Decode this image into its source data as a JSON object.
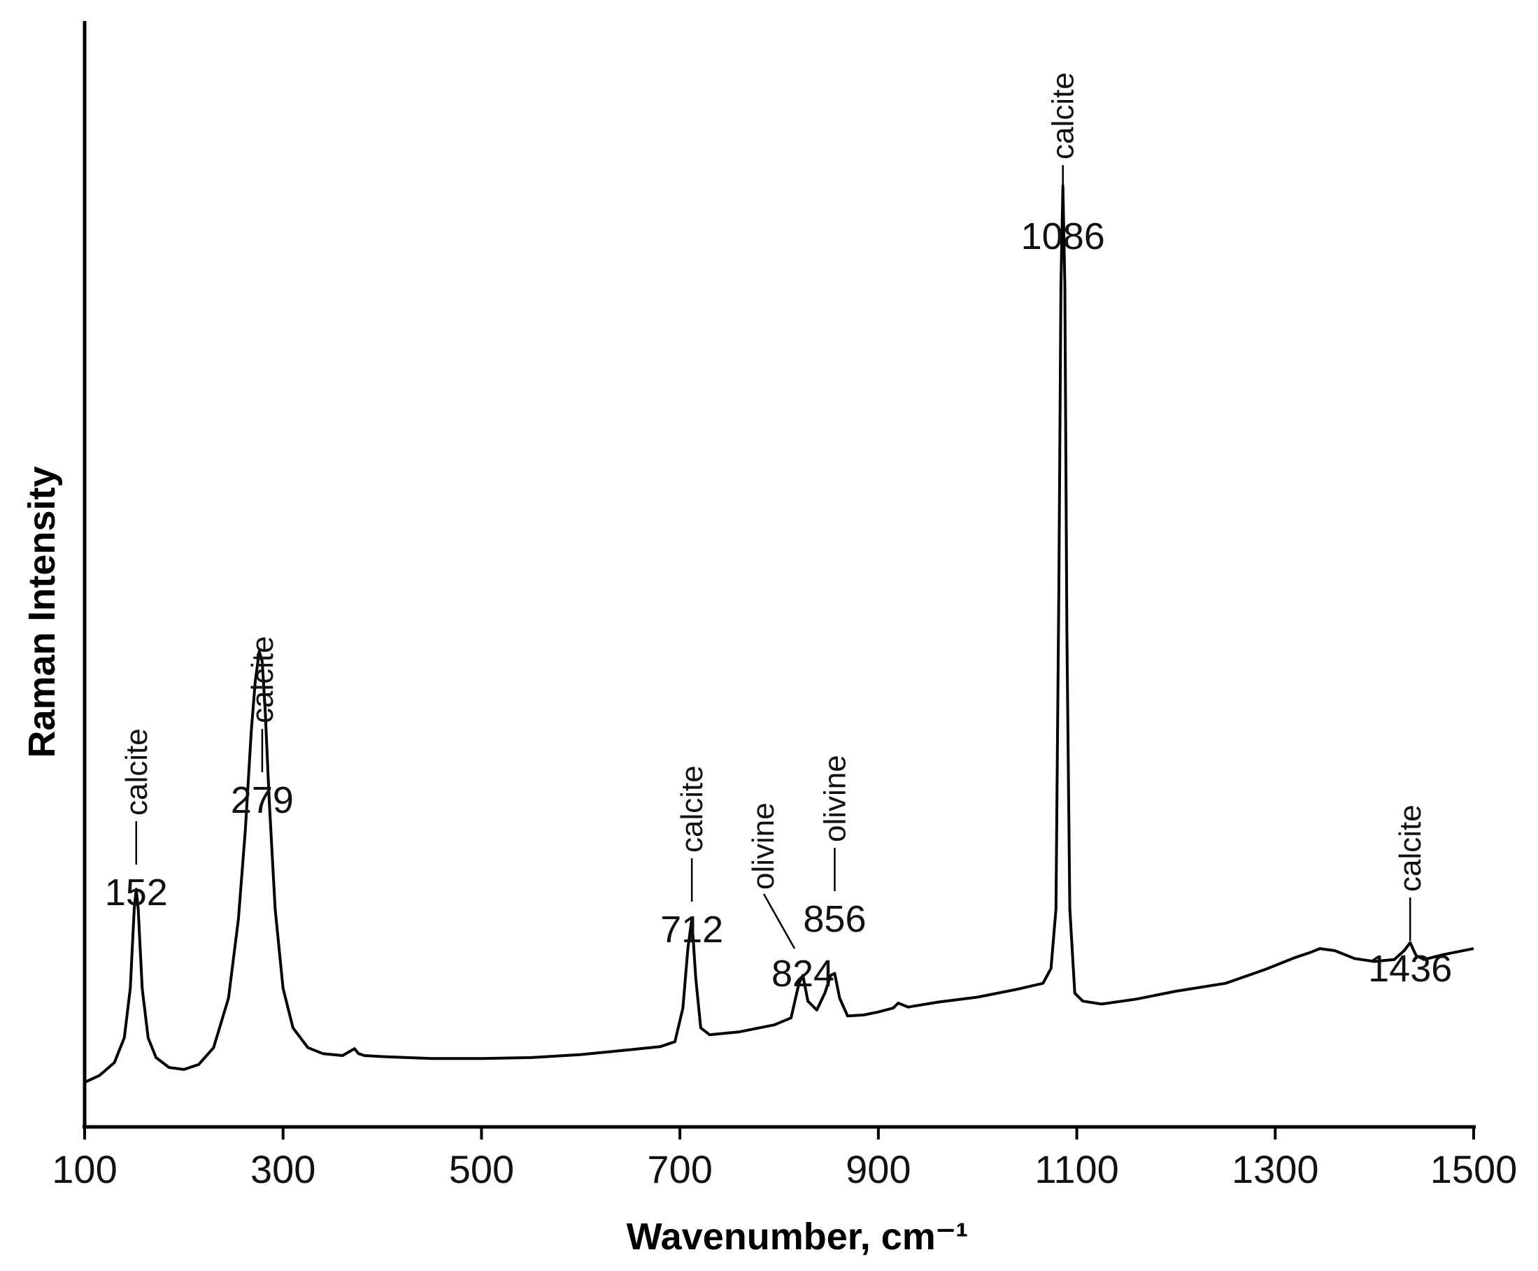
{
  "chart_data": {
    "type": "line",
    "xlabel": "Wavenumber, cm⁻¹",
    "ylabel": "Raman Intensity",
    "xlim": [
      100,
      1500
    ],
    "ylim": [
      0,
      100
    ],
    "x_ticks": [
      100,
      300,
      500,
      700,
      900,
      1100,
      1300,
      1500
    ],
    "y_ticks": [],
    "grid": false,
    "line_color": "#000000",
    "series": [
      {
        "x": [
          100,
          115,
          130,
          140,
          146,
          150,
          152,
          154,
          158,
          164,
          172,
          185,
          200,
          215,
          230,
          245,
          255,
          262,
          268,
          272,
          276,
          279,
          282,
          286,
          292,
          300,
          310,
          325,
          340,
          360,
          372,
          376,
          382,
          400,
          450,
          500,
          550,
          600,
          650,
          680,
          695,
          703,
          708,
          712,
          716,
          721,
          730,
          760,
          795,
          812,
          820,
          824,
          829,
          838,
          846,
          852,
          856,
          861,
          869,
          885,
          900,
          915,
          920,
          930,
          960,
          1000,
          1040,
          1066,
          1074,
          1079,
          1082,
          1084,
          1086,
          1088,
          1090,
          1093,
          1098,
          1106,
          1125,
          1160,
          1200,
          1250,
          1290,
          1320,
          1335,
          1345,
          1360,
          1380,
          1400,
          1420,
          1430,
          1436,
          1442,
          1450,
          1470,
          1500
        ],
        "y": [
          4.5,
          5.2,
          6.5,
          9,
          14,
          22,
          24,
          22,
          14,
          9,
          7,
          6,
          5.8,
          6.3,
          8,
          13,
          21,
          30,
          40,
          45,
          48,
          47,
          42,
          33,
          22,
          14,
          10,
          8,
          7.4,
          7.2,
          7.9,
          7.4,
          7.2,
          7.1,
          6.9,
          6.9,
          7.0,
          7.3,
          7.8,
          8.1,
          8.6,
          12,
          18,
          21,
          15,
          10,
          9.3,
          9.6,
          10.3,
          11,
          14.5,
          15.3,
          12.7,
          11.8,
          13.5,
          15.3,
          15.5,
          13,
          11.2,
          11.3,
          11.6,
          12.0,
          12.5,
          12.1,
          12.6,
          13.1,
          13.9,
          14.5,
          16,
          22,
          55,
          85,
          95,
          85,
          50,
          22,
          13.5,
          12.7,
          12.4,
          12.9,
          13.7,
          14.5,
          15.9,
          17.1,
          17.6,
          18.0,
          17.8,
          17.0,
          16.7,
          16.9,
          17.8,
          18.6,
          17.3,
          16.9,
          17.4,
          18.0
        ]
      }
    ],
    "annotations": [
      {
        "x": 152,
        "peak": "152",
        "mineral": "calcite"
      },
      {
        "x": 279,
        "peak": "279",
        "mineral": "calcite"
      },
      {
        "x": 712,
        "peak": "712",
        "mineral": "calcite"
      },
      {
        "x": 824,
        "peak": "824",
        "mineral": "olivine"
      },
      {
        "x": 856,
        "peak": "856",
        "mineral": "olivine"
      },
      {
        "x": 1086,
        "peak": "1086",
        "mineral": "calcite"
      },
      {
        "x": 1436,
        "peak": "1436",
        "mineral": "calcite"
      }
    ]
  }
}
